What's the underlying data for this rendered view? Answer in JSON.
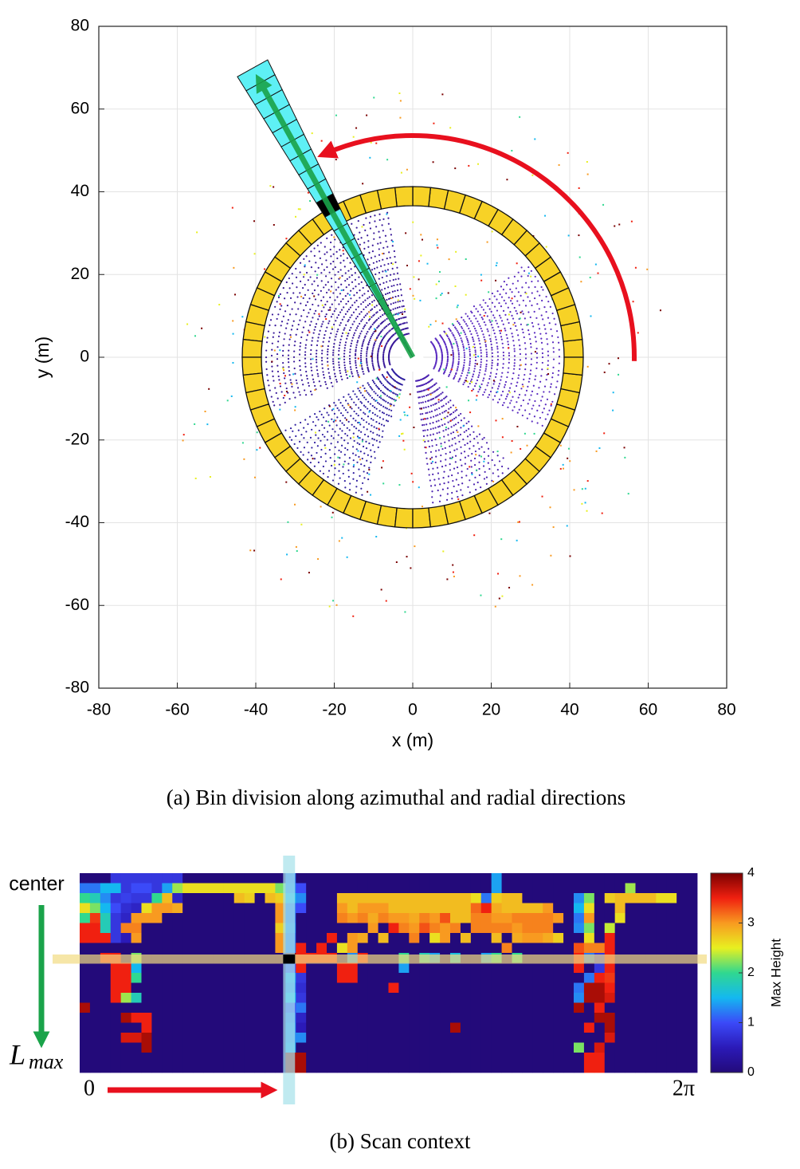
{
  "chart_data": [
    {
      "type": "scatter",
      "xlabel": "x (m)",
      "ylabel": "y (m)",
      "xlim": [
        -80,
        80
      ],
      "ylim": [
        -80,
        80
      ],
      "xticks": [
        -80,
        -60,
        -40,
        -20,
        0,
        20,
        40,
        60,
        80
      ],
      "yticks": [
        -80,
        -60,
        -40,
        -20,
        0,
        20,
        40,
        60,
        80
      ],
      "grid": true,
      "caption": "(a) Bin division along azimuthal and radial directions"
    },
    {
      "type": "heatmap",
      "caption": "(b) Scan context",
      "row_start_label": "center",
      "row_end_label": "L",
      "row_end_label_sub": "max",
      "col_start_label": "0",
      "col_end_label": "2π",
      "colorbar_label": "Max Height",
      "clim": [
        0,
        4
      ],
      "cticks": [
        0,
        1,
        2,
        3,
        4
      ],
      "colormap": [
        "#230a7a",
        "#2b1ab8",
        "#3b4af8",
        "#14b8f0",
        "#30d890",
        "#e8f020",
        "#f89a20",
        "#f02010",
        "#7a0000"
      ],
      "values": [
        [
          0,
          0,
          0,
          0.8,
          0.8,
          0.8,
          0.8,
          0.8,
          0.8,
          0.8,
          0,
          0,
          0,
          0,
          0,
          0,
          0,
          0,
          0,
          0,
          1.2,
          0,
          0,
          0,
          0,
          0,
          0,
          0,
          0,
          0,
          0,
          0,
          0,
          0,
          0,
          0,
          0,
          0,
          0,
          0,
          1.4,
          0,
          0,
          0,
          0,
          0,
          0,
          0,
          0,
          0,
          0,
          0,
          0,
          0,
          0,
          0,
          0,
          0,
          0,
          0
        ],
        [
          1.2,
          1.2,
          1.5,
          1.5,
          0.8,
          1,
          1,
          0.8,
          1.4,
          2.3,
          2.6,
          2.6,
          2.6,
          2.6,
          2.6,
          2.6,
          2.6,
          2.6,
          2.6,
          2.2,
          1.3,
          1,
          0,
          0,
          0,
          0,
          0,
          0,
          0,
          0,
          0,
          0,
          0,
          0,
          0,
          0,
          0,
          0,
          0,
          0,
          1.4,
          0,
          0,
          0,
          0,
          0,
          0,
          0,
          0,
          0,
          0,
          0,
          0,
          2.3,
          0,
          0,
          0,
          0,
          0,
          0
        ],
        [
          2,
          1.8,
          1.3,
          0.8,
          0.9,
          0.8,
          0.8,
          2,
          2.8,
          0.6,
          0,
          0,
          0,
          0,
          0,
          2.8,
          2.7,
          0,
          2.8,
          2.7,
          1.5,
          1.3,
          0,
          0,
          0,
          2.8,
          2.8,
          2.8,
          2.8,
          2.8,
          2.8,
          2.8,
          2.8,
          2.8,
          2.8,
          2.8,
          2.8,
          2.8,
          2.6,
          1.2,
          2.7,
          2.8,
          2.8,
          0,
          0,
          0,
          0,
          0,
          1.3,
          2.2,
          0,
          2.7,
          2.8,
          2.8,
          2.8,
          2.8,
          2.6,
          2.6,
          0,
          0
        ],
        [
          2.6,
          2.2,
          1.5,
          1,
          0.7,
          0.6,
          2.6,
          3,
          3,
          2.9,
          0,
          0,
          0,
          0,
          0,
          0,
          0,
          0,
          0,
          3,
          1.2,
          1,
          0,
          0,
          0,
          3,
          2.8,
          3,
          3,
          3,
          2.8,
          2.8,
          2.8,
          2.8,
          2.8,
          2.8,
          2.8,
          2.8,
          3.2,
          3.5,
          2.9,
          2.8,
          2.8,
          2.8,
          2.8,
          3,
          0,
          0,
          1.5,
          2.6,
          0,
          0,
          2.8,
          0,
          0,
          0,
          0,
          0,
          0,
          0
        ],
        [
          2,
          3.4,
          1.8,
          0.8,
          0.6,
          3,
          3,
          3,
          0,
          0,
          0,
          0,
          0,
          0,
          0,
          0,
          0,
          0,
          0,
          3,
          1.2,
          0,
          0,
          0,
          0,
          3.1,
          3,
          3.1,
          2.9,
          3.1,
          3,
          3,
          2.9,
          3.1,
          3,
          3.3,
          2.8,
          2.8,
          3.1,
          3.1,
          3,
          3,
          3.1,
          3.1,
          3.1,
          3.1,
          3,
          0,
          1.2,
          3,
          0,
          0,
          2.6,
          0,
          0,
          0,
          0,
          0,
          0,
          0
        ],
        [
          3.5,
          3.5,
          1.8,
          0.8,
          3.1,
          3.1,
          0,
          0,
          0,
          0,
          0,
          0,
          0,
          0,
          0,
          0,
          0,
          0,
          0,
          2.7,
          1.3,
          0,
          0,
          0,
          0,
          0,
          0,
          0,
          3,
          0,
          3.5,
          3.1,
          3,
          3.3,
          3.1,
          3,
          3.1,
          0,
          3.1,
          3.1,
          3.1,
          3.1,
          3,
          3.1,
          3.1,
          3.1,
          0,
          0,
          1.3,
          2.2,
          0,
          2.4,
          0,
          0,
          0,
          0,
          0,
          0,
          0,
          0
        ],
        [
          3.5,
          3.5,
          3.5,
          0.8,
          0.5,
          3,
          0,
          0,
          0,
          0,
          0,
          0,
          0,
          0,
          0,
          0,
          0,
          0,
          0,
          3,
          1.2,
          0,
          0,
          0,
          3.5,
          0,
          3,
          2.9,
          0,
          2.8,
          0,
          0,
          3.1,
          0,
          2.6,
          3,
          0,
          2.8,
          0,
          0,
          2.8,
          0,
          2.9,
          3,
          3,
          2.9,
          2.7,
          0,
          0,
          2.6,
          0,
          3.5,
          0,
          0,
          0,
          0,
          0,
          0,
          0,
          0
        ],
        [
          0,
          0,
          0,
          0,
          0,
          0,
          0,
          0,
          0,
          0,
          0,
          0,
          0,
          0,
          0,
          0,
          0,
          0,
          0,
          3,
          1.2,
          3.5,
          0,
          3.5,
          0,
          2.6,
          3,
          0,
          0,
          0,
          0,
          0,
          0,
          0,
          0,
          0,
          0,
          0,
          0,
          0,
          0,
          3.1,
          0,
          0,
          0,
          0,
          0,
          0,
          3.3,
          3.1,
          3.1,
          3.5,
          0,
          0,
          0,
          0,
          0,
          0,
          0,
          0
        ],
        [
          0,
          0,
          3.5,
          3.5,
          0,
          2.2,
          0,
          0,
          0,
          0,
          0,
          0,
          0,
          0,
          0,
          0,
          0,
          0,
          0,
          0,
          4,
          3.5,
          3.5,
          3.5,
          3.5,
          0,
          1.3,
          3.5,
          0,
          0,
          0,
          2,
          0,
          1.8,
          1.4,
          0,
          1.6,
          0,
          0,
          1.4,
          2,
          0,
          2,
          0,
          0,
          0,
          0,
          0,
          3.5,
          1.2,
          0.8,
          3.5,
          0,
          0,
          0,
          0,
          0,
          0,
          0,
          0
        ],
        [
          0,
          0,
          0,
          3.5,
          3.5,
          1.5,
          0,
          0,
          0,
          0,
          0,
          0,
          0,
          0,
          0,
          0,
          0,
          0,
          0,
          0,
          1,
          3.5,
          0,
          0,
          0,
          3.5,
          3.5,
          0,
          0,
          0,
          0,
          1.4,
          0,
          0,
          0,
          0,
          0,
          0,
          0,
          0,
          0,
          0,
          0,
          0,
          0,
          0,
          0,
          0,
          3.5,
          0,
          0.8,
          3.5,
          0,
          0,
          0,
          0,
          0,
          0,
          0,
          0
        ],
        [
          0,
          0,
          0,
          3.5,
          3.5,
          2,
          0,
          0,
          0,
          0,
          0,
          0,
          0,
          0,
          0,
          0,
          0,
          0,
          0,
          0,
          1.4,
          0.8,
          0,
          0,
          0,
          3.5,
          3.5,
          0,
          0,
          0,
          0,
          0,
          0,
          0,
          0,
          0,
          0,
          0,
          0,
          0,
          0,
          0,
          0,
          0,
          0,
          0,
          0,
          0,
          0,
          1.2,
          3.5,
          3.4,
          0,
          0,
          0,
          0,
          0,
          0,
          0,
          0
        ],
        [
          0,
          0,
          0,
          3.5,
          3.5,
          0,
          0,
          0,
          0,
          0,
          0,
          0,
          0,
          0,
          0,
          0,
          0,
          0,
          0,
          0,
          1.3,
          0.7,
          0,
          0,
          0,
          0,
          0,
          0,
          0,
          0,
          3.5,
          0,
          0,
          0,
          0,
          0,
          0,
          0,
          0,
          0,
          0,
          0,
          0,
          0,
          0,
          0,
          0,
          0,
          1.2,
          3.8,
          3.8,
          3.5,
          0,
          0,
          0,
          0,
          0,
          0,
          0,
          0
        ],
        [
          0,
          0,
          0,
          3.5,
          2.3,
          1.8,
          0,
          0,
          0,
          0,
          0,
          0,
          0,
          0,
          0,
          0,
          0,
          0,
          0,
          0,
          1.5,
          0.8,
          0,
          0,
          0,
          0,
          0,
          0,
          0,
          0,
          0,
          0,
          0,
          0,
          0,
          0,
          0,
          0,
          0,
          0,
          0,
          0,
          0,
          0,
          0,
          0,
          0,
          0,
          1.3,
          3.8,
          3.8,
          3.6,
          0,
          0,
          0,
          0,
          0,
          0,
          0,
          0
        ],
        [
          3.8,
          0,
          0,
          0,
          0,
          0,
          0,
          0,
          0,
          0,
          0,
          0,
          0,
          0,
          0,
          0,
          0,
          0,
          0,
          0,
          1,
          1.2,
          0,
          0,
          0,
          0,
          0,
          0,
          0,
          0,
          0,
          0,
          0,
          0,
          0,
          0,
          0,
          0,
          0,
          0,
          0,
          0,
          0,
          0,
          0,
          0,
          0,
          0,
          3.8,
          0,
          3.5,
          0,
          0,
          0,
          0,
          0,
          0,
          0,
          0,
          0
        ],
        [
          0,
          0,
          0,
          0,
          3.8,
          3.5,
          3.5,
          0,
          0,
          0,
          0,
          0,
          0,
          0,
          0,
          0,
          0,
          0,
          0,
          0,
          1.2,
          0.6,
          0,
          0,
          0,
          0,
          0,
          0,
          0,
          0,
          0,
          0,
          0,
          0,
          0,
          0,
          0,
          0,
          0,
          0,
          0,
          0,
          0,
          0,
          0,
          0,
          0,
          0,
          0,
          0,
          3.8,
          3.8,
          0,
          0,
          0,
          0,
          0,
          0,
          0,
          0
        ],
        [
          0,
          0,
          0,
          0,
          0,
          0,
          3.5,
          0,
          0,
          0,
          0,
          0,
          0,
          0,
          0,
          0,
          0,
          0,
          0,
          0,
          1.3,
          0.5,
          0,
          0,
          0,
          0,
          0,
          0,
          0,
          0,
          0,
          0,
          0,
          0,
          0,
          0,
          3.8,
          0,
          0,
          0,
          0,
          0,
          0,
          0,
          0,
          0,
          0,
          0,
          0,
          3.5,
          0,
          3.8,
          0,
          0,
          0,
          0,
          0,
          0,
          0,
          0
        ],
        [
          0,
          0,
          0,
          0,
          3.6,
          3.6,
          3.8,
          0,
          0,
          0,
          0,
          0,
          0,
          0,
          0,
          0,
          0,
          0,
          0,
          0,
          1.3,
          1.3,
          0,
          0,
          0,
          0,
          0,
          0,
          0,
          0,
          0,
          0,
          0,
          0,
          0,
          0,
          0,
          0,
          0,
          0,
          0,
          0,
          0,
          0,
          0,
          0,
          0,
          0,
          0,
          0,
          0,
          3.6,
          0,
          0,
          0,
          0,
          0,
          0,
          0,
          0
        ],
        [
          0,
          0,
          0,
          0,
          0,
          0,
          3.8,
          0,
          0,
          0,
          0,
          0,
          0,
          0,
          0,
          0,
          0,
          0,
          0,
          0,
          1.4,
          0,
          0,
          0,
          0,
          0,
          0,
          0,
          0,
          0,
          0,
          0,
          0,
          0,
          0,
          0,
          0,
          0,
          0,
          0,
          0,
          0,
          0,
          0,
          0,
          0,
          0,
          0,
          2.2,
          0,
          3.6,
          0,
          0,
          0,
          0,
          0,
          0,
          0,
          0,
          0
        ],
        [
          0,
          0,
          0,
          0,
          0,
          0,
          0,
          0,
          0,
          0,
          0,
          0,
          0,
          0,
          0,
          0,
          0,
          0,
          0,
          0,
          3.8,
          3.8,
          0,
          0,
          0,
          0,
          0,
          0,
          0,
          0,
          0,
          0,
          0,
          0,
          0,
          0,
          0,
          0,
          0,
          0,
          0,
          0,
          0,
          0,
          0,
          0,
          0,
          0,
          0,
          3.5,
          3.5,
          0,
          0,
          0,
          0,
          0,
          0,
          0,
          0,
          0
        ],
        [
          0,
          0,
          0,
          0,
          0,
          0,
          0,
          0,
          0,
          0,
          0,
          0,
          0,
          0,
          0,
          0,
          0,
          0,
          0,
          0,
          3.8,
          3.8,
          0,
          0,
          0,
          0,
          0,
          0,
          0,
          0,
          0,
          0,
          0,
          0,
          0,
          0,
          0,
          0,
          0,
          0,
          0,
          0,
          0,
          0,
          0,
          0,
          0,
          0,
          0,
          3.5,
          3.5,
          0,
          0,
          0,
          0,
          0,
          0,
          0,
          0,
          0
        ]
      ]
    }
  ]
}
